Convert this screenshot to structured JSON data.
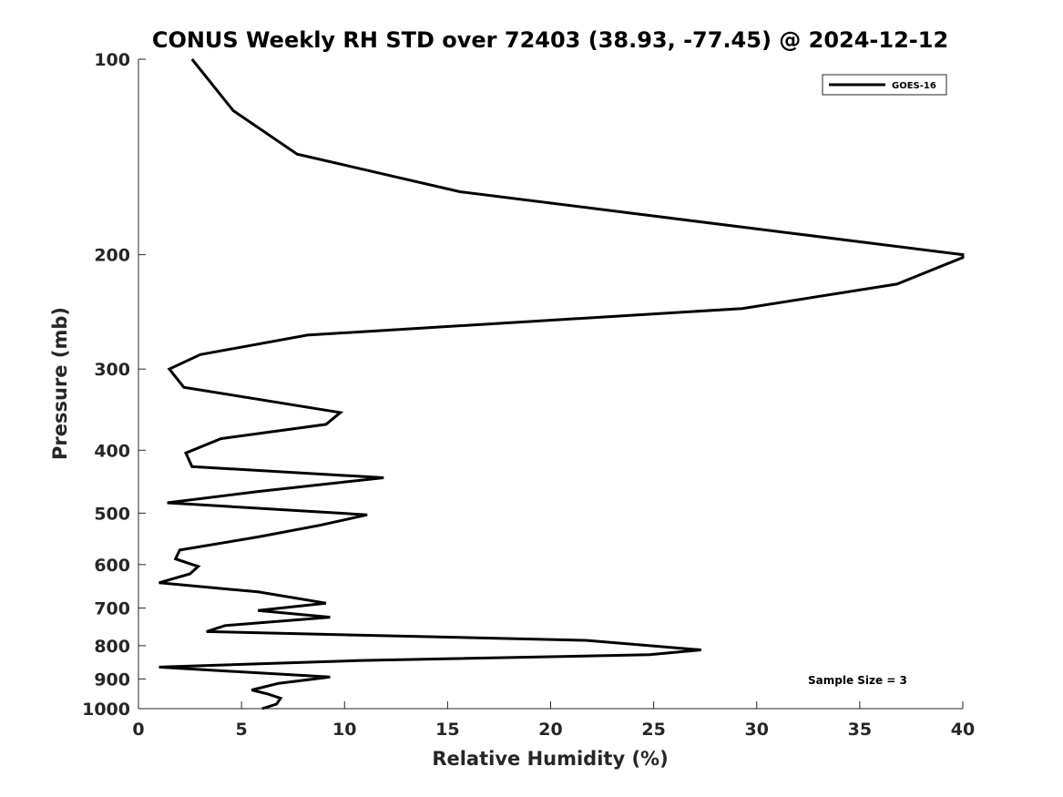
{
  "chart_data": {
    "type": "line",
    "title": "CONUS Weekly RH STD over 72403 (38.93, -77.45) @ 2024-12-12",
    "xlabel": "Relative Humidity (%)",
    "ylabel": "Pressure (mb)",
    "xlim": [
      0,
      40
    ],
    "ylim": [
      100,
      1000
    ],
    "y_scale": "log",
    "y_reversed": true,
    "grid": false,
    "legend_position": "top-right",
    "x_ticks": [
      "0",
      "5",
      "10",
      "15",
      "20",
      "25",
      "30",
      "35",
      "40"
    ],
    "y_ticks": [
      "100",
      "200",
      "300",
      "400",
      "500",
      "600",
      "700",
      "800",
      "900",
      "1000"
    ],
    "series": [
      {
        "name": "GOES-16",
        "color": "#000000",
        "points": [
          [
            2.6,
            100
          ],
          [
            4.6,
            120
          ],
          [
            7.7,
            140
          ],
          [
            15.6,
            160
          ],
          [
            40.0,
            200
          ],
          [
            40.0,
            202
          ],
          [
            36.8,
            222
          ],
          [
            29.3,
            242
          ],
          [
            8.2,
            266
          ],
          [
            3.0,
            285
          ],
          [
            1.5,
            300
          ],
          [
            2.2,
            320
          ],
          [
            9.8,
            350
          ],
          [
            9.1,
            365
          ],
          [
            4.0,
            384
          ],
          [
            2.3,
            404
          ],
          [
            2.6,
            424
          ],
          [
            11.9,
            441
          ],
          [
            5.8,
            463
          ],
          [
            1.4,
            482
          ],
          [
            11.1,
            503
          ],
          [
            8.8,
            522
          ],
          [
            5.8,
            544
          ],
          [
            2.0,
            570
          ],
          [
            1.8,
            588
          ],
          [
            2.9,
            604
          ],
          [
            2.5,
            620
          ],
          [
            1.0,
            640
          ],
          [
            5.8,
            661
          ],
          [
            9.1,
            688
          ],
          [
            5.8,
            706
          ],
          [
            9.3,
            723
          ],
          [
            4.2,
            745
          ],
          [
            3.3,
            761
          ],
          [
            21.7,
            785
          ],
          [
            27.3,
            812
          ],
          [
            24.8,
            826
          ],
          [
            10.8,
            843
          ],
          [
            1.0,
            863
          ],
          [
            9.3,
            894
          ],
          [
            6.8,
            914
          ],
          [
            5.5,
            936
          ],
          [
            6.3,
            950
          ],
          [
            6.9,
            964
          ],
          [
            6.7,
            984
          ],
          [
            6.0,
            1000
          ]
        ]
      }
    ],
    "annotations": [
      "Sample Size = 3"
    ]
  }
}
